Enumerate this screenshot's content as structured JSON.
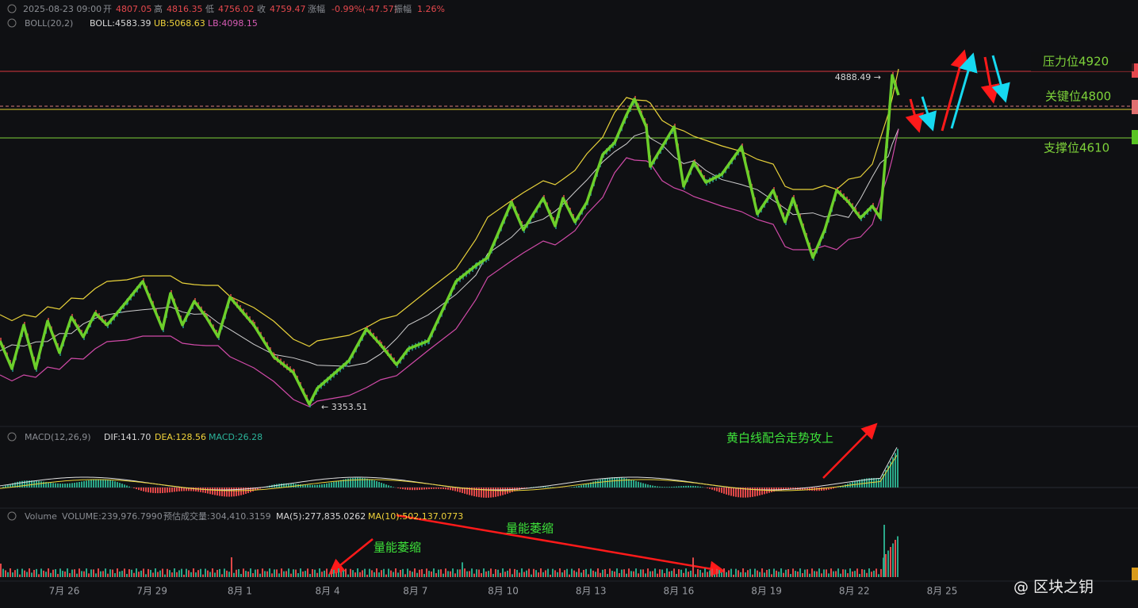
{
  "header": {
    "datetime": "2025-08-23 09:00",
    "open_label": "开",
    "open": "4807.05",
    "high_label": "高",
    "high": "4816.35",
    "low_label": "低",
    "low": "4756.02",
    "close_label": "收",
    "close": "4759.47",
    "change_label": "涨幅",
    "change": "-0.99%(-47.57)",
    "amplitude_label": "振幅",
    "amplitude": "1.26%"
  },
  "boll": {
    "name": "BOLL(20,2)",
    "mid": "BOLL:4583.39",
    "upper": "UB:5068.63",
    "lower": "LB:4098.15"
  },
  "price_labels": {
    "high": "4888.49 →",
    "low": "← 3353.51"
  },
  "levels": [
    "压力位4920",
    "关键位4800",
    "支撑位4610"
  ],
  "macd": {
    "name": "MACD(12,26,9)",
    "dif": "DIF:141.70",
    "dea": "DEA:128.56",
    "macd": "MACD:26.28"
  },
  "volume": {
    "name": "Volume",
    "volume": "VOLUME:239,976.7990",
    "estimate": "预估成交量:304,410.3159",
    "ma5": "MA(5):277,835.0262",
    "ma10": "MA(10):502,137.0773"
  },
  "annotations": [
    "黄白线配合走势攻上",
    "量能萎缩",
    "量能萎缩"
  ],
  "x_axis": [
    "7月 26",
    "7月 29",
    "8月 1",
    "8月 4",
    "8月 7",
    "8月 10",
    "8月 13",
    "8月 16",
    "8月 19",
    "8月 22",
    "8月 25"
  ],
  "watermark": "@ 区块之钥"
}
